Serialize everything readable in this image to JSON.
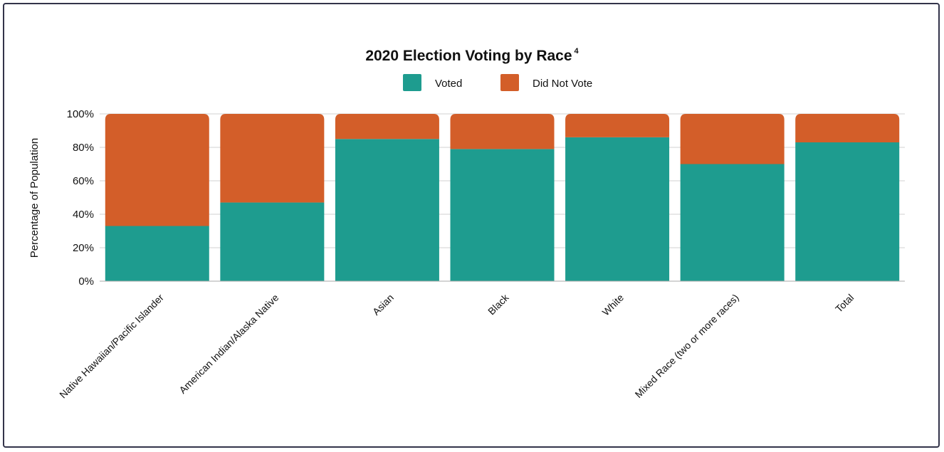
{
  "chart_data": {
    "type": "bar",
    "stacked": true,
    "title": "2020 Election Voting by Race",
    "title_superscript": "4",
    "ylabel": "Percentage of Population",
    "xlabel": "",
    "ylim": [
      0,
      100
    ],
    "y_ticks": [
      "0%",
      "20%",
      "40%",
      "60%",
      "80%",
      "100%"
    ],
    "y_tick_values": [
      0,
      20,
      40,
      60,
      80,
      100
    ],
    "grid": true,
    "legend_position": "top-center",
    "categories": [
      "Native Hawaiian/Pacific Islander",
      "American Indian/Alaska Native",
      "Asian",
      "Black",
      "White",
      "Mixed Race (two or more races)",
      "Total"
    ],
    "series": [
      {
        "name": "Voted",
        "color": "#1e9c8f",
        "values": [
          33,
          47,
          85,
          79,
          86,
          70,
          83
        ]
      },
      {
        "name": "Did Not Vote",
        "color": "#d35e29",
        "values": [
          67,
          53,
          15,
          21,
          14,
          30,
          17
        ]
      }
    ]
  }
}
